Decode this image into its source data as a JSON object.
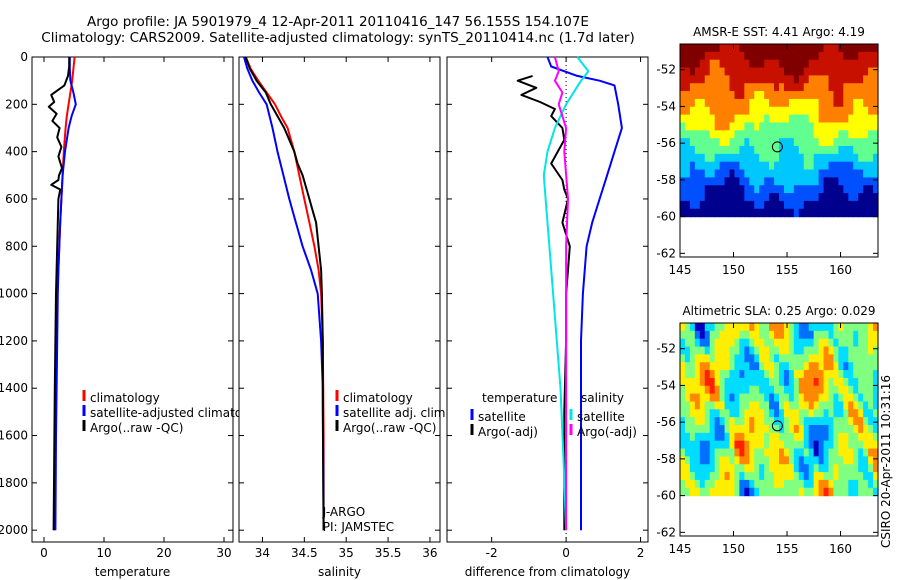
{
  "header": {
    "title_line1": "Argo profile: JA 5901979_4 12-Apr-2011 20110416_147 56.155S 154.107E",
    "title_line2": "Climatology: CARS2009. Satellite-adjusted climatology: synTS_20110414.nc (1.7d later)"
  },
  "side_text": "CSIRO 20-Apr-2011 10:31:16",
  "chart_data": [
    {
      "id": "temperature",
      "type": "line",
      "xlabel": "temperature",
      "ylabel": "",
      "xlim": [
        -2,
        31.5
      ],
      "ylim": [
        2050,
        0
      ],
      "xticks": [
        0,
        10,
        20,
        30
      ],
      "xtick_labels": [
        "0",
        "10",
        "20",
        "30"
      ],
      "yticks": [
        0,
        200,
        400,
        600,
        800,
        1000,
        1200,
        1400,
        1600,
        1800,
        2000
      ],
      "ytick_labels": [
        "0",
        "200",
        "400",
        "600",
        "800",
        "1000",
        "1200",
        "1400",
        "1600",
        "1800",
        "2000"
      ],
      "legend": {
        "position": "lower-center",
        "entries": [
          "climatology",
          "satellite-adjusted climatology",
          "Argo(..raw -QC)"
        ]
      },
      "series": [
        {
          "name": "climatology",
          "color": "#ff0000",
          "x": [
            5.1,
            4.9,
            4.7,
            4.4,
            4.1,
            3.8,
            3.6,
            3.3,
            3.1,
            2.9,
            2.7,
            2.55,
            2.4,
            2.25,
            2.15,
            2.05,
            1.9,
            1.8,
            1.75
          ],
          "y": [
            0,
            50,
            100,
            150,
            200,
            250,
            300,
            400,
            500,
            600,
            700,
            800,
            900,
            1000,
            1200,
            1400,
            1600,
            1800,
            2000
          ]
        },
        {
          "name": "satellite-adjusted climatology",
          "color": "#0000ff",
          "x": [
            4.3,
            4.3,
            4.4,
            4.9,
            5.3,
            4.6,
            4.1,
            3.5,
            3.1,
            2.9,
            2.7,
            2.55,
            2.4,
            2.3,
            2.2,
            2.1,
            2.0,
            1.95,
            1.9
          ],
          "y": [
            0,
            50,
            100,
            150,
            200,
            250,
            300,
            400,
            500,
            600,
            700,
            800,
            900,
            1000,
            1200,
            1400,
            1600,
            1800,
            2000
          ]
        },
        {
          "name": "Argo(..raw -QC)",
          "color": "#000000",
          "x": [
            4.2,
            4.2,
            4.0,
            3.4,
            1.2,
            1.7,
            0.8,
            2.1,
            1.4,
            2.6,
            2.2,
            2.9,
            2.4,
            3.0,
            2.5,
            2.4,
            1.2,
            2.7,
            2.4,
            2.3,
            2.2,
            2.1,
            2.0,
            1.9,
            1.8,
            1.7,
            1.6
          ],
          "y": [
            0,
            40,
            80,
            120,
            160,
            190,
            210,
            240,
            270,
            300,
            340,
            380,
            420,
            470,
            500,
            520,
            540,
            560,
            600,
            700,
            800,
            900,
            1000,
            1200,
            1400,
            1700,
            2000
          ]
        }
      ]
    },
    {
      "id": "salinity",
      "type": "line",
      "xlabel": "salinity",
      "ylabel": "",
      "xlim": [
        33.72,
        36.12
      ],
      "ylim": [
        2050,
        0
      ],
      "xticks": [
        34,
        34.5,
        35,
        35.5,
        36
      ],
      "xtick_labels": [
        "34",
        "34.5",
        "35",
        "35.5",
        "36"
      ],
      "legend": {
        "position": "lower-center",
        "entries": [
          "climatology",
          "satellite adj. clim.",
          "Argo(..raw -QC)"
        ]
      },
      "annotation": {
        "line1": "J-ARGO",
        "line2": "PI: JAMSTEC"
      },
      "series": [
        {
          "name": "climatology",
          "color": "#ff0000",
          "x": [
            33.8,
            33.86,
            33.95,
            34.05,
            34.15,
            34.22,
            34.3,
            34.38,
            34.44,
            34.5,
            34.56,
            34.62,
            34.67,
            34.7,
            34.72,
            34.73,
            34.73
          ],
          "y": [
            0,
            50,
            100,
            150,
            200,
            250,
            300,
            400,
            500,
            600,
            700,
            800,
            900,
            1000,
            1200,
            1600,
            2000
          ]
        },
        {
          "name": "satellite adj. clim.",
          "color": "#0000ff",
          "x": [
            33.78,
            33.82,
            33.88,
            33.96,
            34.05,
            34.12,
            34.18,
            34.25,
            34.32,
            34.4,
            34.48,
            34.58,
            34.66,
            34.7,
            34.72,
            34.73
          ],
          "y": [
            0,
            50,
            100,
            150,
            200,
            300,
            400,
            500,
            600,
            700,
            800,
            900,
            1000,
            1200,
            1400,
            2000
          ]
        },
        {
          "name": "Argo(..raw -QC)",
          "color": "#000000",
          "x": [
            33.8,
            33.85,
            33.93,
            34.04,
            34.1,
            34.18,
            34.26,
            34.32,
            34.38,
            34.42,
            34.48,
            34.52,
            34.56,
            34.6,
            34.64,
            34.67,
            34.7,
            34.71,
            34.72,
            34.72,
            34.73
          ],
          "y": [
            0,
            50,
            100,
            150,
            200,
            250,
            300,
            350,
            400,
            450,
            500,
            550,
            600,
            650,
            700,
            800,
            900,
            1000,
            1200,
            1500,
            2000
          ]
        }
      ]
    },
    {
      "id": "difference",
      "type": "line",
      "xlabel": "difference from climatology",
      "ylabel": "",
      "xlim": [
        -3.2,
        2.2
      ],
      "ylim": [
        2050,
        0
      ],
      "xticks": [
        -2,
        0,
        2
      ],
      "xtick_labels": [
        "-2",
        "0",
        "2"
      ],
      "legend": {
        "position": "lower-center",
        "groups": [
          {
            "heading": "temperature",
            "entries": [
              "satellite",
              "Argo(-adj)"
            ]
          },
          {
            "heading": "salinity",
            "entries": [
              "satellite",
              "Argo(-adj)"
            ]
          }
        ]
      },
      "series": [
        {
          "name": "temperature satellite",
          "color": "#0000ff",
          "x": [
            -0.5,
            -0.4,
            0.3,
            0.9,
            1.3,
            1.4,
            1.5,
            1.3,
            1.1,
            0.9,
            0.7,
            0.55,
            0.45,
            0.4,
            0.4,
            0.4
          ],
          "y": [
            0,
            40,
            80,
            100,
            120,
            200,
            300,
            400,
            500,
            600,
            700,
            800,
            1000,
            1200,
            1600,
            2000
          ]
        },
        {
          "name": "temperature Argo(-adj)",
          "color": "#000000",
          "x": [
            -0.9,
            -1.3,
            -0.8,
            -1.2,
            -0.7,
            -0.3,
            -0.4,
            -0.1,
            -0.05,
            -0.4,
            -0.1,
            -0.05,
            0.05,
            -0.1,
            0.1,
            0.05,
            0.0,
            0.0,
            -0.05,
            -0.05,
            -0.05
          ],
          "y": [
            80,
            100,
            130,
            160,
            190,
            220,
            250,
            300,
            350,
            450,
            520,
            560,
            600,
            700,
            800,
            900,
            1000,
            1200,
            1500,
            1800,
            2000
          ]
        },
        {
          "name": "salinity satellite",
          "color": "#00e5e5",
          "x": [
            0.3,
            0.6,
            0.4,
            0.0,
            -0.3,
            -0.5,
            -0.6,
            -0.55,
            -0.45,
            -0.35,
            -0.25,
            -0.15,
            -0.07,
            0.0
          ],
          "y": [
            0,
            60,
            100,
            200,
            300,
            400,
            500,
            600,
            800,
            1000,
            1200,
            1400,
            1700,
            2000
          ]
        },
        {
          "name": "salinity Argo(-adj)",
          "color": "#ff00ff",
          "x": [
            -0.3,
            -0.2,
            -0.3,
            -0.1,
            -0.2,
            0.0,
            -0.05,
            0.05,
            0.0,
            0.0,
            0.0,
            0.0
          ],
          "y": [
            0,
            60,
            100,
            150,
            200,
            300,
            400,
            600,
            800,
            1000,
            1500,
            2000
          ]
        }
      ]
    },
    {
      "id": "sst_map",
      "type": "heatmap",
      "title": "AMSR-E SST: 4.41 Argo: 4.19",
      "xlim": [
        145,
        163.5
      ],
      "ylim": [
        -62.2,
        -50.6
      ],
      "xticks": [
        145,
        150,
        155,
        160
      ],
      "xtick_labels": [
        "145",
        "150",
        "155",
        "160"
      ],
      "yticks": [
        -52,
        -54,
        -56,
        -58,
        -60,
        -62
      ],
      "ytick_labels": [
        "-52",
        "-54",
        "-56",
        "-58",
        "-60",
        "-62"
      ],
      "data_extent": {
        "lon": [
          145,
          163.5
        ],
        "lat": [
          -60,
          -50.6
        ]
      },
      "marker": {
        "lon": 154.1,
        "lat": -56.2
      },
      "palette": [
        "#00008f",
        "#0050ff",
        "#00c8ff",
        "#60ff90",
        "#ffff00",
        "#ff8000",
        "#c81000",
        "#800000"
      ]
    },
    {
      "id": "sla_map",
      "type": "heatmap",
      "title": "Altimetric SLA: 0.25 Argo: 0.029",
      "xlim": [
        145,
        163.5
      ],
      "ylim": [
        -62.2,
        -50.6
      ],
      "xticks": [
        145,
        150,
        155,
        160
      ],
      "xtick_labels": [
        "145",
        "150",
        "155",
        "160"
      ],
      "yticks": [
        -52,
        -54,
        -56,
        -58,
        -60,
        -62
      ],
      "ytick_labels": [
        "-52",
        "-54",
        "-56",
        "-58",
        "-60",
        "-62"
      ],
      "data_extent": {
        "lon": [
          145,
          163.5
        ],
        "lat": [
          -60,
          -50.6
        ]
      },
      "marker": {
        "lon": 154.1,
        "lat": -56.2
      },
      "palette": [
        "#0000c0",
        "#0070ff",
        "#00ddff",
        "#80ff80",
        "#ffee00",
        "#ff8800",
        "#ff2000",
        "#c00000"
      ]
    }
  ]
}
